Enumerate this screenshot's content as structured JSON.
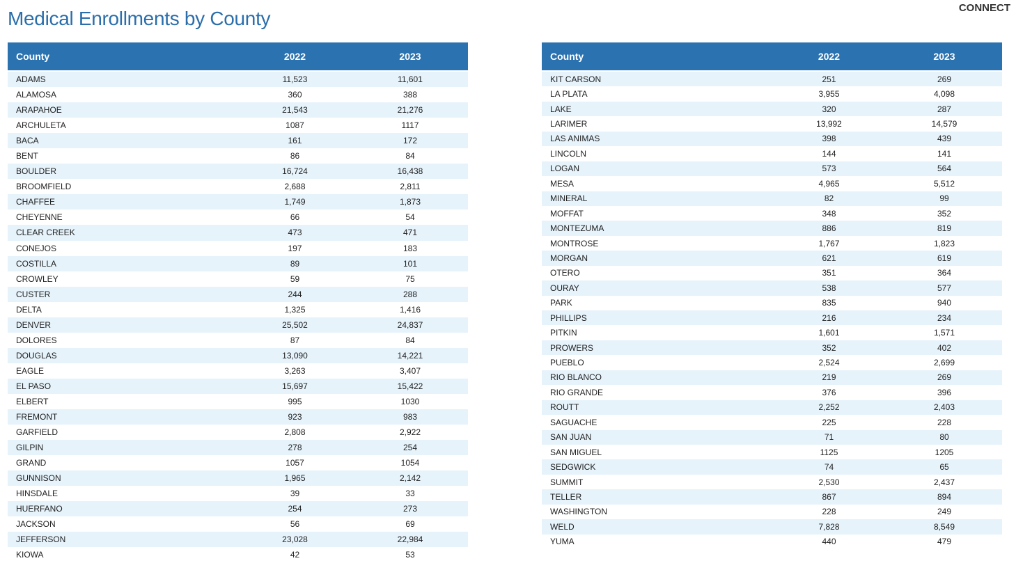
{
  "header": {
    "title": "Medical Enrollments by County",
    "logo": "CONNECT"
  },
  "tables": [
    {
      "columns": [
        "County",
        "2022",
        "2023"
      ],
      "rows": [
        [
          "ADAMS",
          "11,523",
          "11,601"
        ],
        [
          "ALAMOSA",
          "360",
          "388"
        ],
        [
          "ARAPAHOE",
          "21,543",
          "21,276"
        ],
        [
          "ARCHULETA",
          "1087",
          "1117"
        ],
        [
          "BACA",
          "161",
          "172"
        ],
        [
          "BENT",
          "86",
          "84"
        ],
        [
          "BOULDER",
          "16,724",
          "16,438"
        ],
        [
          "BROOMFIELD",
          "2,688",
          "2,811"
        ],
        [
          "CHAFFEE",
          "1,749",
          "1,873"
        ],
        [
          "CHEYENNE",
          "66",
          "54"
        ],
        [
          "CLEAR CREEK",
          "473",
          "471"
        ],
        [
          "CONEJOS",
          "197",
          "183"
        ],
        [
          "COSTILLA",
          "89",
          "101"
        ],
        [
          "CROWLEY",
          "59",
          "75"
        ],
        [
          "CUSTER",
          "244",
          "288"
        ],
        [
          "DELTA",
          "1,325",
          "1,416"
        ],
        [
          "DENVER",
          "25,502",
          "24,837"
        ],
        [
          "DOLORES",
          "87",
          "84"
        ],
        [
          "DOUGLAS",
          "13,090",
          "14,221"
        ],
        [
          "EAGLE",
          "3,263",
          "3,407"
        ],
        [
          "EL PASO",
          "15,697",
          "15,422"
        ],
        [
          "ELBERT",
          "995",
          "1030"
        ],
        [
          "FREMONT",
          "923",
          "983"
        ],
        [
          "GARFIELD",
          "2,808",
          "2,922"
        ],
        [
          "GILPIN",
          "278",
          "254"
        ],
        [
          "GRAND",
          "1057",
          "1054"
        ],
        [
          "GUNNISON",
          "1,965",
          "2,142"
        ],
        [
          "HINSDALE",
          "39",
          "33"
        ],
        [
          "HUERFANO",
          "254",
          "273"
        ],
        [
          "JACKSON",
          "56",
          "69"
        ],
        [
          "JEFFERSON",
          "23,028",
          "22,984"
        ],
        [
          "KIOWA",
          "42",
          "53"
        ]
      ]
    },
    {
      "columns": [
        "County",
        "2022",
        "2023"
      ],
      "rows": [
        [
          "KIT CARSON",
          "251",
          "269"
        ],
        [
          "LA PLATA",
          "3,955",
          "4,098"
        ],
        [
          "LAKE",
          "320",
          "287"
        ],
        [
          "LARIMER",
          "13,992",
          "14,579"
        ],
        [
          "LAS ANIMAS",
          "398",
          "439"
        ],
        [
          "LINCOLN",
          "144",
          "141"
        ],
        [
          "LOGAN",
          "573",
          "564"
        ],
        [
          "MESA",
          "4,965",
          "5,512"
        ],
        [
          "MINERAL",
          "82",
          "99"
        ],
        [
          "MOFFAT",
          "348",
          "352"
        ],
        [
          "MONTEZUMA",
          "886",
          "819"
        ],
        [
          "MONTROSE",
          "1,767",
          "1,823"
        ],
        [
          "MORGAN",
          "621",
          "619"
        ],
        [
          "OTERO",
          "351",
          "364"
        ],
        [
          "OURAY",
          "538",
          "577"
        ],
        [
          "PARK",
          "835",
          "940"
        ],
        [
          "PHILLIPS",
          "216",
          "234"
        ],
        [
          "PITKIN",
          "1,601",
          "1,571"
        ],
        [
          "PROWERS",
          "352",
          "402"
        ],
        [
          "PUEBLO",
          "2,524",
          "2,699"
        ],
        [
          "RIO BLANCO",
          "219",
          "269"
        ],
        [
          "RIO GRANDE",
          "376",
          "396"
        ],
        [
          "ROUTT",
          "2,252",
          "2,403"
        ],
        [
          "SAGUACHE",
          "225",
          "228"
        ],
        [
          "SAN JUAN",
          "71",
          "80"
        ],
        [
          "SAN MIGUEL",
          "1125",
          "1205"
        ],
        [
          "SEDGWICK",
          "74",
          "65"
        ],
        [
          "SUMMIT",
          "2,530",
          "2,437"
        ],
        [
          "TELLER",
          "867",
          "894"
        ],
        [
          "WASHINGTON",
          "228",
          "249"
        ],
        [
          "WELD",
          "7,828",
          "8,549"
        ],
        [
          "YUMA",
          "440",
          "479"
        ]
      ]
    }
  ]
}
